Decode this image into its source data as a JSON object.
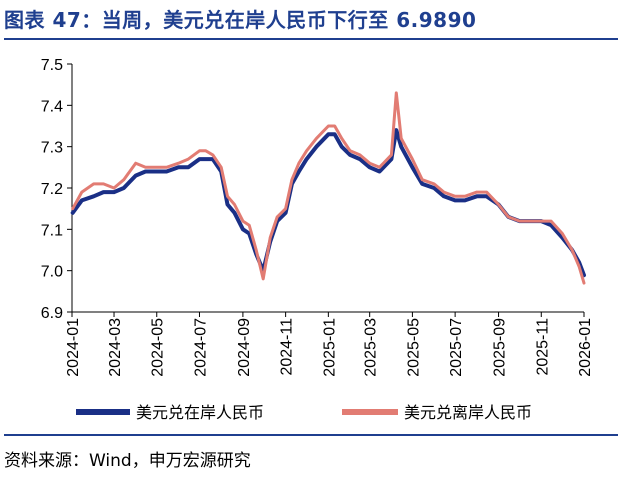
{
  "header": {
    "title": "图表 47：当周，美元兑在岸人民币下行至 6.9890"
  },
  "footer": {
    "source": "资料来源：Wind，申万宏源研究"
  },
  "colors": {
    "accent": "#1f3f8f",
    "series_onshore": "#1a2f86",
    "series_offshore": "#e27c73"
  },
  "chart_data": {
    "type": "line",
    "title": "图表 47：当周，美元兑在岸人民币下行至 6.9890",
    "xlabel": "",
    "ylabel": "",
    "ylim": [
      6.9,
      7.5
    ],
    "yticks": [
      "6.9",
      "7.0",
      "7.1",
      "7.2",
      "7.3",
      "7.4",
      "7.5"
    ],
    "xticks": [
      "2024-01",
      "2024-03",
      "2024-05",
      "2024-07",
      "2024-09",
      "2024-11",
      "2025-01",
      "2025-03",
      "2025-05",
      "2025-07",
      "2025-09",
      "2025-11",
      "2026-01"
    ],
    "legend": "bottom",
    "grid": false,
    "x": [
      "2024-01-02",
      "2024-01-15",
      "2024-02-01",
      "2024-02-15",
      "2024-03-01",
      "2024-03-15",
      "2024-04-01",
      "2024-04-15",
      "2024-05-01",
      "2024-05-15",
      "2024-06-01",
      "2024-06-15",
      "2024-07-01",
      "2024-07-10",
      "2024-07-20",
      "2024-08-01",
      "2024-08-10",
      "2024-08-20",
      "2024-09-01",
      "2024-09-10",
      "2024-09-20",
      "2024-09-30",
      "2024-10-10",
      "2024-10-20",
      "2024-11-01",
      "2024-11-10",
      "2024-11-20",
      "2024-12-01",
      "2024-12-15",
      "2025-01-01",
      "2025-01-10",
      "2025-01-20",
      "2025-02-01",
      "2025-02-15",
      "2025-03-01",
      "2025-03-15",
      "2025-04-01",
      "2025-04-08",
      "2025-04-15",
      "2025-05-01",
      "2025-05-15",
      "2025-06-01",
      "2025-06-15",
      "2025-07-01",
      "2025-07-15",
      "2025-08-01",
      "2025-08-15",
      "2025-09-01",
      "2025-09-15",
      "2025-10-01",
      "2025-10-15",
      "2025-11-01",
      "2025-11-15",
      "2025-12-01",
      "2025-12-15",
      "2025-12-25",
      "2026-01-01"
    ],
    "series": [
      {
        "name": "美元兑在岸人民币",
        "values": [
          7.14,
          7.17,
          7.18,
          7.19,
          7.19,
          7.2,
          7.23,
          7.24,
          7.24,
          7.24,
          7.25,
          7.25,
          7.27,
          7.27,
          7.27,
          7.24,
          7.16,
          7.14,
          7.1,
          7.09,
          7.04,
          7.0,
          7.07,
          7.12,
          7.14,
          7.21,
          7.24,
          7.27,
          7.3,
          7.33,
          7.33,
          7.3,
          7.28,
          7.27,
          7.25,
          7.24,
          7.27,
          7.34,
          7.3,
          7.25,
          7.21,
          7.2,
          7.18,
          7.17,
          7.17,
          7.18,
          7.18,
          7.16,
          7.13,
          7.12,
          7.12,
          7.12,
          7.11,
          7.08,
          7.05,
          7.02,
          6.989
        ]
      },
      {
        "name": "美元兑离岸人民币",
        "values": [
          7.15,
          7.19,
          7.21,
          7.21,
          7.2,
          7.22,
          7.26,
          7.25,
          7.25,
          7.25,
          7.26,
          7.27,
          7.29,
          7.29,
          7.28,
          7.25,
          7.18,
          7.16,
          7.12,
          7.11,
          7.05,
          6.98,
          7.08,
          7.13,
          7.15,
          7.22,
          7.26,
          7.29,
          7.32,
          7.35,
          7.35,
          7.32,
          7.29,
          7.28,
          7.26,
          7.25,
          7.28,
          7.43,
          7.32,
          7.27,
          7.22,
          7.21,
          7.19,
          7.18,
          7.18,
          7.19,
          7.19,
          7.16,
          7.13,
          7.12,
          7.12,
          7.12,
          7.12,
          7.09,
          7.05,
          7.01,
          6.97
        ]
      }
    ]
  }
}
